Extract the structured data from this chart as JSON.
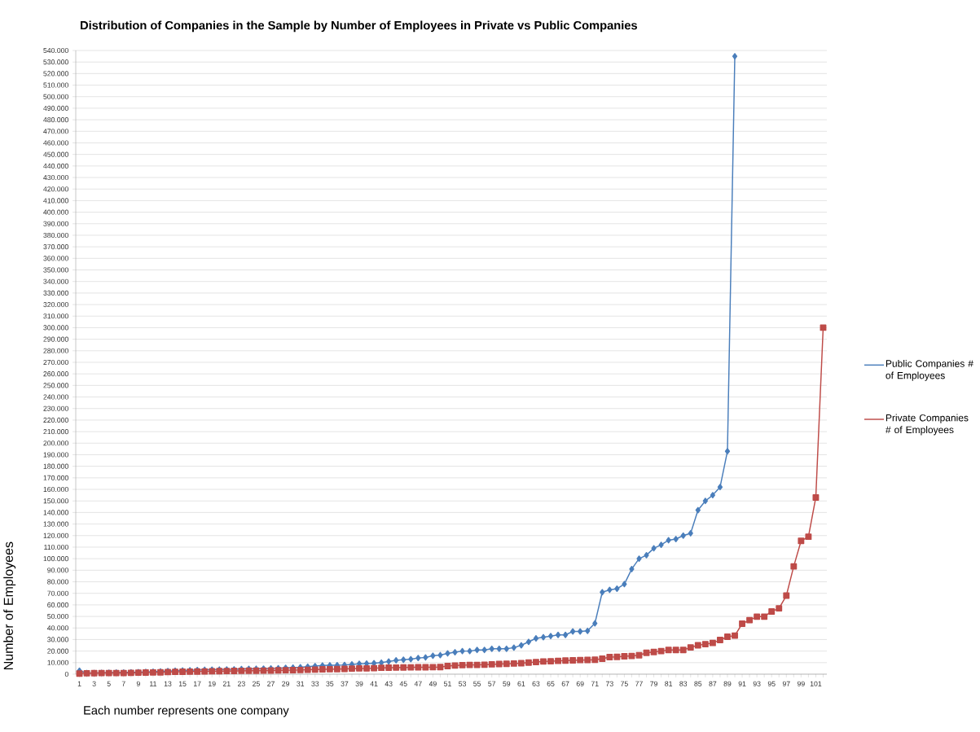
{
  "chart_data": {
    "type": "line",
    "title": "Distribution of Companies in the Sample by Number of Employees in Private vs Public Companies",
    "xlabel": "Each number represents one company",
    "ylabel": "Number of Employees",
    "categories": [
      "1",
      null,
      "3",
      null,
      "5",
      null,
      "7",
      null,
      "9",
      null,
      "11",
      null,
      "13",
      null,
      "15",
      null,
      "17",
      null,
      "19",
      null,
      "21",
      null,
      "23",
      null,
      "25",
      null,
      "27",
      null,
      "29",
      null,
      "31",
      null,
      "33",
      null,
      "35",
      null,
      "37",
      null,
      "39",
      null,
      "41",
      null,
      "43",
      null,
      "45",
      null,
      "47",
      null,
      "49",
      null,
      "51",
      null,
      "53",
      null,
      "55",
      null,
      "57",
      null,
      "59",
      null,
      "61",
      null,
      "63",
      null,
      "65",
      null,
      "67",
      null,
      "69",
      null,
      "71",
      null,
      "73",
      null,
      "75",
      null,
      "77",
      null,
      "79",
      null,
      "81",
      null,
      "83",
      null,
      "85",
      null,
      "87",
      null,
      "89",
      null,
      "91",
      null,
      "93",
      null,
      "95",
      null,
      "97",
      null,
      "99",
      null,
      "101",
      null
    ],
    "series": [
      {
        "name": "Public Companies # of Employees",
        "color": "#4a7ebb",
        "marker": "diamond",
        "values": [
          3000,
          1000,
          1000,
          1200,
          1300,
          1400,
          1500,
          1600,
          1800,
          2000,
          2200,
          2400,
          2700,
          3000,
          3200,
          3400,
          3600,
          3800,
          3900,
          4000,
          4100,
          4200,
          4500,
          4600,
          4700,
          4800,
          5000,
          5200,
          5500,
          5700,
          6000,
          6500,
          7000,
          7500,
          7700,
          7800,
          8000,
          8500,
          9000,
          9200,
          9500,
          10000,
          11000,
          12000,
          12500,
          13000,
          14000,
          14500,
          16000,
          16500,
          18000,
          19000,
          20000,
          20000,
          21000,
          21000,
          22000,
          22000,
          22000,
          23000,
          25000,
          28000,
          31000,
          32000,
          33000,
          34000,
          34000,
          37000,
          37000,
          37500,
          44000,
          71000,
          73000,
          74000,
          78000,
          91000,
          100000,
          103000,
          109000,
          112000,
          116000,
          117000,
          120000,
          122000,
          142000,
          150000,
          155000,
          162000,
          193000,
          535000,
          null,
          null,
          null,
          null,
          null,
          null,
          null,
          null,
          null,
          null,
          null,
          null
        ]
      },
      {
        "name": "Private Companies # of Employees",
        "color": "#be4b48",
        "marker": "square",
        "values": [
          500,
          800,
          900,
          1000,
          1000,
          1000,
          1000,
          1100,
          1300,
          1400,
          1500,
          1600,
          1800,
          2000,
          2100,
          2200,
          2300,
          2400,
          2500,
          2600,
          2700,
          2800,
          2900,
          3000,
          3000,
          3100,
          3200,
          3300,
          3400,
          3500,
          3600,
          3800,
          4000,
          4200,
          4300,
          4400,
          4600,
          4800,
          5000,
          5000,
          5200,
          5500,
          5600,
          5700,
          5800,
          5900,
          6000,
          6000,
          6100,
          6200,
          7000,
          7500,
          7800,
          8000,
          8000,
          8200,
          8500,
          8800,
          9000,
          9200,
          9500,
          10000,
          10500,
          11000,
          11200,
          11500,
          11800,
          12000,
          12200,
          12300,
          12500,
          13400,
          14800,
          15000,
          15500,
          15800,
          16400,
          18500,
          19200,
          20000,
          21000,
          21000,
          21000,
          23200,
          25000,
          26000,
          27000,
          29600,
          32400,
          33400,
          43700,
          46800,
          49800,
          49800,
          54300,
          57000,
          68000,
          93300,
          115400,
          119000,
          153000,
          300000
        ]
      }
    ],
    "ylim": [
      0,
      540000
    ],
    "yticks": [
      0,
      {
        "value": 10000,
        "label": "10.000"
      },
      {
        "value": 20000,
        "label": "20.000"
      },
      {
        "value": 30000,
        "label": "30.000"
      },
      {
        "value": 40000,
        "label": "40.000"
      },
      {
        "value": 50000,
        "label": "50.000"
      },
      {
        "value": 60000,
        "label": "60.000"
      },
      {
        "value": 70000,
        "label": "70.000"
      },
      {
        "value": 80000,
        "label": "80.000"
      },
      {
        "value": 90000,
        "label": "90.000"
      },
      {
        "value": 100000,
        "label": "100.000"
      },
      {
        "value": 110000,
        "label": "110.000"
      },
      {
        "value": 120000,
        "label": "120.000"
      },
      {
        "value": 130000,
        "label": "130.000"
      },
      {
        "value": 140000,
        "label": "140.000"
      },
      {
        "value": 150000,
        "label": "150.000"
      },
      {
        "value": 160000,
        "label": "160.000"
      },
      {
        "value": 170000,
        "label": "170.000"
      },
      {
        "value": 180000,
        "label": "180.000"
      },
      {
        "value": 190000,
        "label": "190.000"
      },
      {
        "value": 200000,
        "label": "200.000"
      },
      {
        "value": 210000,
        "label": "210.000"
      },
      {
        "value": 220000,
        "label": "220.000"
      },
      {
        "value": 230000,
        "label": "230.000"
      },
      {
        "value": 240000,
        "label": "240.000"
      },
      {
        "value": 250000,
        "label": "250.000"
      },
      {
        "value": 260000,
        "label": "260.000"
      },
      {
        "value": 270000,
        "label": "270.000"
      },
      {
        "value": 280000,
        "label": "280.000"
      },
      {
        "value": 290000,
        "label": "290.000"
      },
      {
        "value": 300000,
        "label": "300.000"
      },
      {
        "value": 310000,
        "label": "310.000"
      },
      {
        "value": 320000,
        "label": "320.000"
      },
      {
        "value": 330000,
        "label": "330.000"
      },
      {
        "value": 340000,
        "label": "340.000"
      },
      {
        "value": 350000,
        "label": "350.000"
      },
      {
        "value": 360000,
        "label": "360.000"
      },
      {
        "value": 370000,
        "label": "370.000"
      },
      {
        "value": 380000,
        "label": "380.000"
      },
      {
        "value": 390000,
        "label": "390.000"
      },
      {
        "value": 400000,
        "label": "400.000"
      },
      {
        "value": 410000,
        "label": "410.000"
      },
      {
        "value": 420000,
        "label": "420.000"
      },
      {
        "value": 430000,
        "label": "430.000"
      },
      {
        "value": 440000,
        "label": "440.000"
      },
      {
        "value": 450000,
        "label": "450.000"
      },
      {
        "value": 460000,
        "label": "460.000"
      },
      {
        "value": 470000,
        "label": "470.000"
      },
      {
        "value": 480000,
        "label": "480.000"
      },
      {
        "value": 490000,
        "label": "490.000"
      },
      {
        "value": 500000,
        "label": "500.000"
      },
      {
        "value": 510000,
        "label": "510.000"
      },
      {
        "value": 520000,
        "label": "520.000"
      },
      {
        "value": 530000,
        "label": "530.000"
      },
      {
        "value": 540000,
        "label": "540.000"
      }
    ],
    "grid": "y",
    "legend": "right"
  }
}
